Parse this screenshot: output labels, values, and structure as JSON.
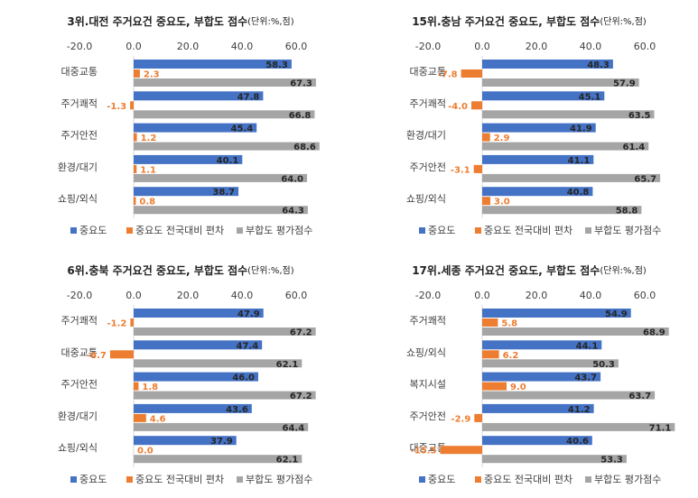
{
  "chart_data": [
    {
      "type": "hbar",
      "title": "3위.대전 주거요건 중요도, 부합도 점수",
      "subtitle": "(단위:%,점)",
      "categories": [
        "대중교통",
        "주거쾌적",
        "주거안전",
        "환경/대기",
        "쇼핑/외식"
      ],
      "xlim": [
        -20,
        70
      ],
      "xticks": [
        {
          "value": -20,
          "label": "-20.0"
        },
        {
          "value": 0,
          "label": "0.0"
        },
        {
          "value": 20,
          "label": "20.0"
        },
        {
          "value": 40,
          "label": "40.0"
        },
        {
          "value": 60,
          "label": "60.0"
        }
      ],
      "legend": "bottom",
      "series": [
        {
          "name": "중요도",
          "color": "#4472c4",
          "values": [
            58.3,
            47.8,
            45.4,
            40.1,
            38.7
          ],
          "value_labels": [
            "58.3",
            "47.8",
            "45.4",
            "40.1",
            "38.7"
          ]
        },
        {
          "name": "중요도 전국대비 편차",
          "color": "#ed7d31",
          "values": [
            2.3,
            -1.3,
            1.2,
            1.1,
            0.8
          ],
          "value_labels": [
            "2.3",
            "-1.3",
            "1.2",
            "1.1",
            "0.8"
          ]
        },
        {
          "name": "부합도 평가점수",
          "color": "#a5a5a5",
          "values": [
            67.3,
            66.8,
            68.6,
            64.0,
            64.3
          ],
          "value_labels": [
            "67.3",
            "66.8",
            "68.6",
            "64.0",
            "64.3"
          ]
        }
      ]
    },
    {
      "type": "hbar",
      "title": "15위.충남 주거요건 중요도, 부합도 점수",
      "subtitle": "(단위:%,점)",
      "categories": [
        "대중교통",
        "주거쾌적",
        "환경/대기",
        "주거안전",
        "쇼핑/외식"
      ],
      "xlim": [
        -20,
        70
      ],
      "xticks": [
        {
          "value": -20,
          "label": "-20.0"
        },
        {
          "value": 0,
          "label": "0.0"
        },
        {
          "value": 20,
          "label": "20.0"
        },
        {
          "value": 40,
          "label": "40.0"
        },
        {
          "value": 60,
          "label": "60.0"
        }
      ],
      "legend": "bottom",
      "series": [
        {
          "name": "중요도",
          "color": "#4472c4",
          "values": [
            48.3,
            45.1,
            41.9,
            41.1,
            40.8
          ],
          "value_labels": [
            "48.3",
            "45.1",
            "41.9",
            "41.1",
            "40.8"
          ]
        },
        {
          "name": "중요도 전국대비 편차",
          "color": "#ed7d31",
          "values": [
            -7.8,
            -4.0,
            2.9,
            -3.1,
            3.0
          ],
          "value_labels": [
            "-7.8",
            "-4.0",
            "2.9",
            "-3.1",
            "3.0"
          ]
        },
        {
          "name": "부합도 평가점수",
          "color": "#a5a5a5",
          "values": [
            57.9,
            63.5,
            61.4,
            65.7,
            58.8
          ],
          "value_labels": [
            "57.9",
            "63.5",
            "61.4",
            "65.7",
            "58.8"
          ]
        }
      ]
    },
    {
      "type": "hbar",
      "title": "6위.충북 주거요건 중요도, 부합도 점수",
      "subtitle": "(단위:%,점)",
      "categories": [
        "주거쾌적",
        "대중교통",
        "주거안전",
        "환경/대기",
        "쇼핑/외식"
      ],
      "xlim": [
        -20,
        70
      ],
      "xticks": [
        {
          "value": -20,
          "label": "-20.0"
        },
        {
          "value": 0,
          "label": "0.0"
        },
        {
          "value": 20,
          "label": "20.0"
        },
        {
          "value": 40,
          "label": "40.0"
        },
        {
          "value": 60,
          "label": "60.0"
        }
      ],
      "legend": "bottom",
      "series": [
        {
          "name": "중요도",
          "color": "#4472c4",
          "values": [
            47.9,
            47.4,
            46.0,
            43.6,
            37.9
          ],
          "value_labels": [
            "47.9",
            "47.4",
            "46.0",
            "43.6",
            "37.9"
          ]
        },
        {
          "name": "중요도 전국대비 편차",
          "color": "#ed7d31",
          "values": [
            -1.2,
            -8.7,
            1.8,
            4.6,
            0.0
          ],
          "value_labels": [
            "-1.2",
            "-8.7",
            "1.8",
            "4.6",
            "0.0"
          ]
        },
        {
          "name": "부합도 평가점수",
          "color": "#a5a5a5",
          "values": [
            67.2,
            62.1,
            67.2,
            64.4,
            62.1
          ],
          "value_labels": [
            "67.2",
            "62.1",
            "67.2",
            "64.4",
            "62.1"
          ]
        }
      ]
    },
    {
      "type": "hbar",
      "title": "17위.세종 주거요건 중요도, 부합도 점수",
      "subtitle": "(단위:%,점)",
      "categories": [
        "주거쾌적",
        "쇼핑/외식",
        "복지시설",
        "주거안전",
        "대중교통"
      ],
      "xlim": [
        -20,
        70
      ],
      "xticks": [
        {
          "value": -20,
          "label": "-20.0"
        },
        {
          "value": 0,
          "label": "0.0"
        },
        {
          "value": 20,
          "label": "20.0"
        },
        {
          "value": 40,
          "label": "40.0"
        },
        {
          "value": 60,
          "label": "60.0"
        }
      ],
      "legend": "bottom",
      "series": [
        {
          "name": "중요도",
          "color": "#4472c4",
          "values": [
            54.9,
            44.1,
            43.7,
            41.2,
            40.6
          ],
          "value_labels": [
            "54.9",
            "44.1",
            "43.7",
            "41.2",
            "40.6"
          ]
        },
        {
          "name": "중요도 전국대비 편차",
          "color": "#ed7d31",
          "values": [
            5.8,
            6.2,
            9.0,
            -2.9,
            -15.5
          ],
          "value_labels": [
            "5.8",
            "6.2",
            "9.0",
            "-2.9",
            "-15.5"
          ]
        },
        {
          "name": "부합도 평가점수",
          "color": "#a5a5a5",
          "values": [
            68.9,
            50.3,
            63.7,
            71.1,
            53.3
          ],
          "value_labels": [
            "68.9",
            "50.3",
            "63.7",
            "71.1",
            "53.3"
          ]
        }
      ]
    }
  ]
}
